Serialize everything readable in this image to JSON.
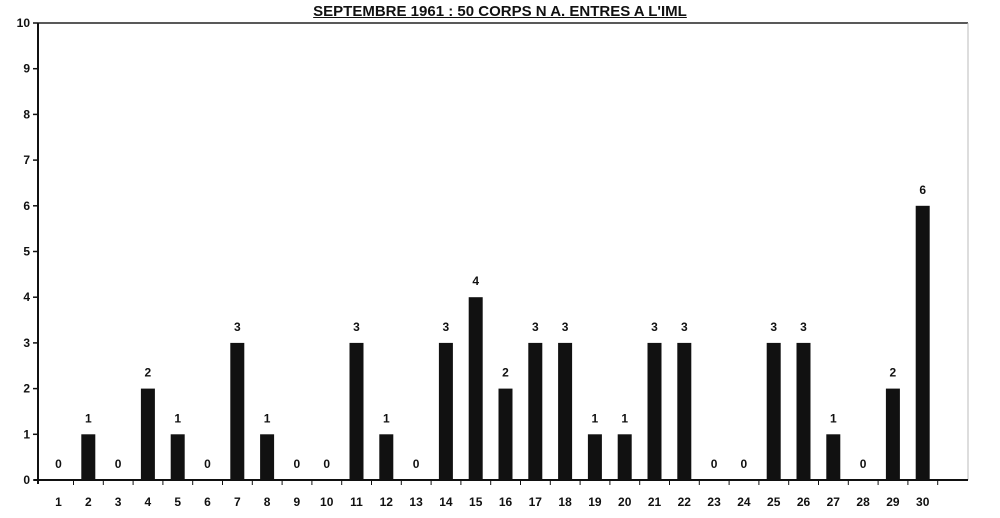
{
  "chart_data": {
    "type": "bar",
    "title": "SEPTEMBRE 1961 : 50 CORPS N A. ENTRES A L'IML",
    "xlabel": "",
    "ylabel": "",
    "categories": [
      "1",
      "2",
      "3",
      "4",
      "5",
      "6",
      "7",
      "8",
      "9",
      "10",
      "11",
      "12",
      "13",
      "14",
      "15",
      "16",
      "17",
      "18",
      "19",
      "20",
      "21",
      "22",
      "23",
      "24",
      "25",
      "26",
      "27",
      "28",
      "29",
      "30"
    ],
    "values": [
      0,
      1,
      0,
      2,
      1,
      0,
      3,
      1,
      0,
      0,
      3,
      1,
      0,
      3,
      4,
      2,
      3,
      3,
      1,
      1,
      3,
      3,
      0,
      0,
      3,
      3,
      1,
      0,
      2,
      6
    ],
    "ylim": [
      0,
      10
    ],
    "yticks": [
      0,
      1,
      2,
      3,
      4,
      5,
      6,
      7,
      8,
      9,
      10
    ],
    "data_labels": true,
    "grid": false,
    "bar_color": "#111111"
  }
}
